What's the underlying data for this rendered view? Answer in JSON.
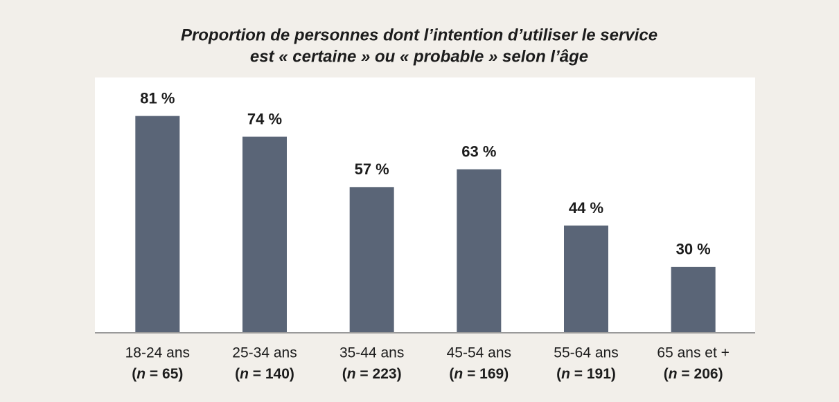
{
  "chart_data": {
    "type": "bar",
    "title": [
      "Proportion de personnes dont l’intention d’utiliser le service",
      "est « certaine » ou « probable » selon l’âge"
    ],
    "categories": [
      "18-24 ans",
      "25-34 ans",
      "35-44 ans",
      "45-54 ans",
      "55-64 ans",
      "65 ans et +"
    ],
    "category_sublabels": [
      "(n = 65)",
      "(n = 140)",
      "(n = 223)",
      "(n = 169)",
      "(n = 191)",
      "(n = 206)"
    ],
    "values": [
      81,
      74,
      57,
      63,
      44,
      30
    ],
    "value_labels": [
      "81 %",
      "74 %",
      "57 %",
      "63 %",
      "44 %",
      "30 %"
    ],
    "color": "#5a6577",
    "ylim": [
      8,
      94
    ]
  }
}
